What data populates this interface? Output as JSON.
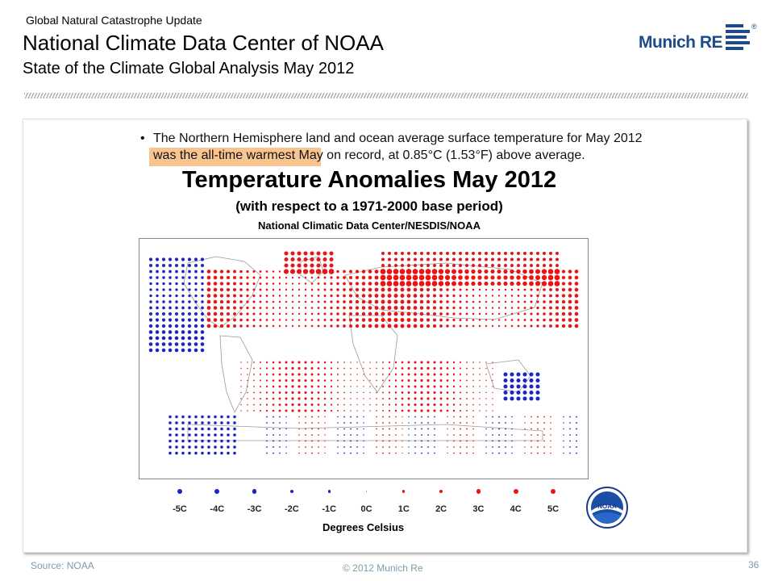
{
  "header": {
    "supertitle": "Global Natural Catastrophe Update",
    "title": "National Climate Data Center of NOAA",
    "subtitle": "State of the Climate Global Analysis May 2012",
    "logo_text": "Munich RE",
    "logo_reg": "®"
  },
  "slide": {
    "bullet_symbol": "•",
    "bullet_line1": "The Northern Hemisphere land and ocean average surface temperature for May 2012",
    "bullet_line2_highlight": "was the all-time warmest May",
    "bullet_line2_rest": " on record, at 0.85°C (1.53°F) above average.",
    "highlight_color": "#f8c590"
  },
  "chart_data": {
    "type": "scatter",
    "title": "Temperature Anomalies May 2012",
    "subtitle": "(with respect to a 1971-2000 base period)",
    "source_line": "National Climatic Data Center/NESDIS/NOAA",
    "legend": {
      "labels": [
        "-5C",
        "-4C",
        "-3C",
        "-2C",
        "-1C",
        "0C",
        "1C",
        "2C",
        "3C",
        "4C",
        "5C"
      ],
      "values": [
        -5,
        -4,
        -3,
        -2,
        -1,
        0,
        1,
        2,
        3,
        4,
        5
      ],
      "title": "Degrees Celsius"
    },
    "colors": {
      "warm": "#e81416",
      "cold": "#1a22c8",
      "land": "#9a9a9a"
    }
  },
  "noaa_logo": "NOAA",
  "footer": {
    "source": "Source: NOAA",
    "copyright": "© 2012 Munich Re",
    "page_number": "36"
  }
}
